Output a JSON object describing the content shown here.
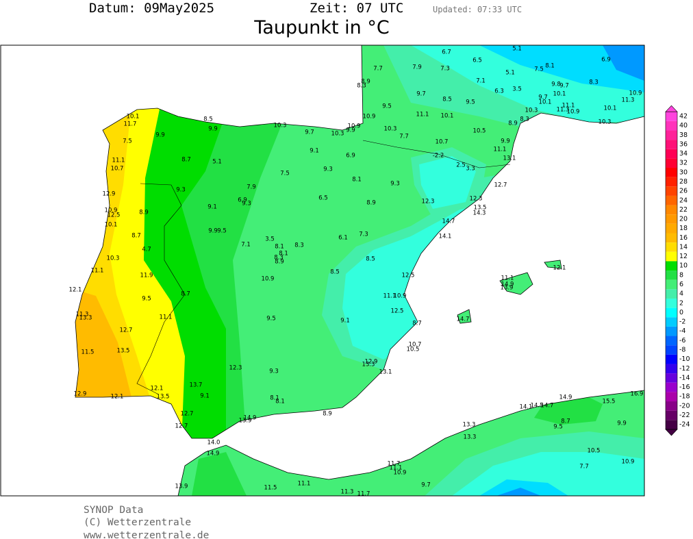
{
  "header": {
    "date": "Datum: 09May2025",
    "time": "Zeit: 07 UTC",
    "updated": "Updated: 07:33 UTC",
    "title": "Taupunkt in °C"
  },
  "stations": [
    "6.7",
    "6.5",
    "5.1",
    "6.9",
    "7.7",
    "7.9",
    "7.3",
    "5.1",
    "7.5",
    "8.1",
    "7.1",
    "8.3",
    "8.9",
    "8.3",
    "6.3",
    "3.5",
    "9.8",
    "9.7",
    "10.1",
    "10.9",
    "9.7",
    "8.5",
    "9.5",
    "9.7",
    "10.1",
    "11.3",
    "11.1",
    "9.5",
    "10.3",
    "11.3",
    "10.9",
    "10.1",
    "11.1",
    "10.1",
    "10.9",
    "8.3",
    "10.3",
    "8.9",
    "10.1",
    "11.7",
    "8.5",
    "9.9",
    "10.3",
    "10.9",
    "10.3",
    "9.9",
    "9.7",
    "10.3",
    "9.9",
    "10.5",
    "7.7",
    "7.5",
    "9.9",
    "10.7",
    "11.1",
    "9.1",
    "6.9",
    "-2.2",
    "13.1",
    "11.1",
    "8.7",
    "5.1",
    "2.5",
    "3.3",
    "10.7",
    "9.3",
    "7.5",
    "8.1",
    "9.3",
    "12.7",
    "7.9",
    "9.3",
    "12.9",
    "6.5",
    "12.3",
    "6.9",
    "12.3",
    "8.9",
    "9.3",
    "9.1",
    "13.5",
    "10.9",
    "8.9",
    "14.3",
    "12.5",
    "14.7",
    "10.1",
    "9.9",
    "9.5",
    "7.3",
    "8.7",
    "14.1",
    "6.1",
    "3.5",
    "7.1",
    "8.3",
    "8.1",
    "4.7",
    "8.1",
    "8.3",
    "10.3",
    "8.5",
    "8.9",
    "12.1",
    "11.1",
    "8.5",
    "11.9",
    "12.5",
    "11.1",
    "10.9",
    "14.9",
    "13.9",
    "12.1",
    "8.7",
    "11.1",
    "10.9",
    "9.5",
    "12.5",
    "11.3",
    "11.1",
    "13.3",
    "9.5",
    "14.7",
    "9.1",
    "8.7",
    "12.7",
    "10.7",
    "10.5",
    "13.5",
    "11.5",
    "12.9",
    "13.3",
    "12.3",
    "9.3",
    "13.1",
    "13.7",
    "12.1",
    "12.9",
    "9.1",
    "14.9",
    "12.1",
    "13.5",
    "16.9",
    "8.1",
    "8.1",
    "15.5",
    "14.1",
    "14.5",
    "14.7",
    "8.9",
    "12.7",
    "14.9",
    "13.9",
    "8.7",
    "9.9",
    "13.3",
    "12.7",
    "9.5",
    "13.3",
    "14.0",
    "10.5",
    "14.9",
    "10.9",
    "11.7",
    "7.7",
    "11.1",
    "10.9",
    "11.1",
    "9.7",
    "13.9",
    "11.5",
    "11.3",
    "11.7"
  ],
  "colorbar": {
    "levels": [
      42,
      40,
      38,
      36,
      34,
      32,
      30,
      28,
      26,
      24,
      22,
      20,
      18,
      16,
      14,
      12,
      10,
      8,
      6,
      4,
      2,
      0,
      -2,
      -4,
      -6,
      -8,
      -10,
      -12,
      -14,
      -16,
      -18,
      -20,
      -22,
      -24
    ],
    "colors": [
      "#ff44dd",
      "#ff33bb",
      "#ff2299",
      "#ff1177",
      "#ff0055",
      "#ff0033",
      "#ff0000",
      "#ff2200",
      "#ff4400",
      "#ff6600",
      "#ff8800",
      "#ff9900",
      "#ffaa00",
      "#ffbb00",
      "#ffdd00",
      "#ffff00",
      "#00dd00",
      "#22e044",
      "#44ee77",
      "#44eeaa",
      "#33ffdd",
      "#00ffff",
      "#00ccff",
      "#0099ff",
      "#0066ff",
      "#0044ff",
      "#0000ff",
      "#3300ee",
      "#6600dd",
      "#9900cc",
      "#aa00aa",
      "#880088",
      "#660066",
      "#440044"
    ]
  },
  "footer": [
    "SYNOP Data",
    "(C) Wetterzentrale",
    "www.wetterzentrale.de"
  ]
}
